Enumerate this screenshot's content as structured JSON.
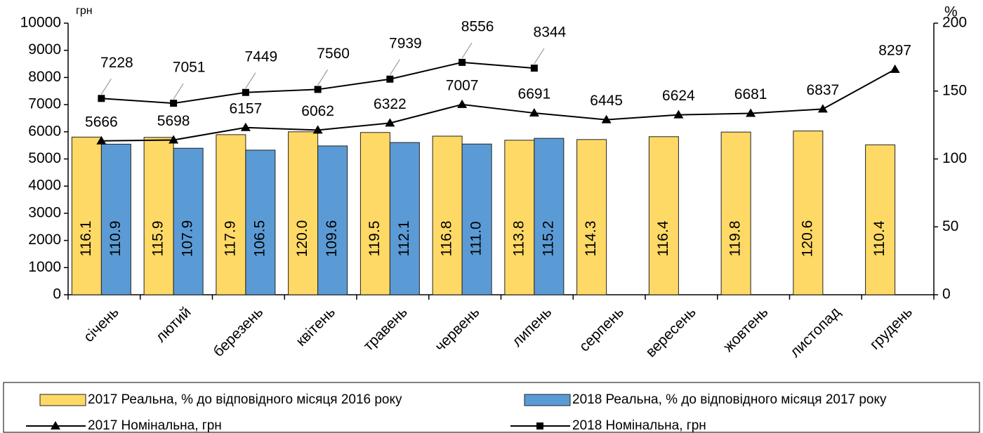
{
  "chart_data": {
    "type": "bar",
    "y_label": "грн",
    "y2_label": "%",
    "categories": [
      "січень",
      "лютий",
      "березень",
      "квітень",
      "травень",
      "червень",
      "липень",
      "серпень",
      "вересень",
      "жовтень",
      "листопад",
      "грудень"
    ],
    "ylim": [
      0,
      10000
    ],
    "yticks": [
      0,
      1000,
      2000,
      3000,
      4000,
      5000,
      6000,
      7000,
      8000,
      9000,
      10000
    ],
    "y2lim": [
      0,
      200
    ],
    "y2ticks": [
      0,
      50,
      100,
      150,
      200
    ],
    "series": [
      {
        "name": "2017 Реальна, % до відповідного місяця 2016 року",
        "type": "bar",
        "axis": "y2",
        "color": "#FFD966",
        "values": [
          116.1,
          115.9,
          117.9,
          120.0,
          119.5,
          116.8,
          113.8,
          114.3,
          116.4,
          119.8,
          120.6,
          110.4
        ],
        "value_labels": [
          "116.1",
          "115.9",
          "117.9",
          "120.0",
          "119.5",
          "116.8",
          "113.8",
          "114.3",
          "116.4",
          "119.8",
          "120.6",
          "110.4"
        ]
      },
      {
        "name": "2018 Реальна, % до відповідного місяця 2017 року",
        "type": "bar",
        "axis": "y2",
        "color": "#5B9BD5",
        "values": [
          110.9,
          107.9,
          106.5,
          109.6,
          112.1,
          111.0,
          115.2,
          null,
          null,
          null,
          null,
          null
        ],
        "value_labels": [
          "110.9",
          "107.9",
          "106.5",
          "109.6",
          "112.1",
          "111.0",
          "115.2",
          null,
          null,
          null,
          null,
          null
        ]
      },
      {
        "name": "2017 Номінальна, грн",
        "type": "line",
        "marker": "triangle",
        "color": "#000000",
        "values": [
          5666,
          5698,
          6157,
          6062,
          6322,
          7007,
          6691,
          6445,
          6624,
          6681,
          6837,
          8297
        ]
      },
      {
        "name": "2018 Номінальна, грн",
        "type": "line",
        "marker": "square",
        "color": "#000000",
        "values": [
          7228,
          7051,
          7449,
          7560,
          7939,
          8556,
          8344,
          null,
          null,
          null,
          null,
          null
        ]
      }
    ]
  }
}
